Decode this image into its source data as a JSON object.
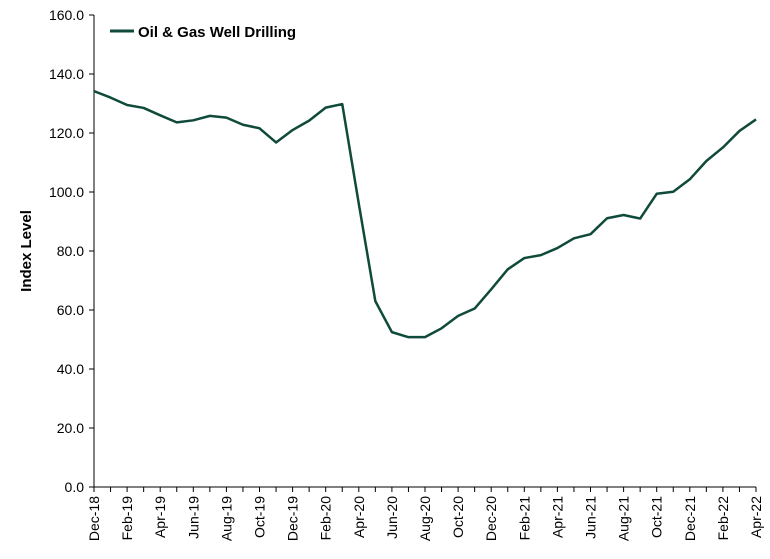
{
  "chart_data": {
    "type": "line",
    "title": "",
    "xlabel": "",
    "ylabel": "Index Level",
    "ylim": [
      0,
      160
    ],
    "y_ticks": [
      "0.0",
      "20.0",
      "40.0",
      "60.0",
      "80.0",
      "100.0",
      "120.0",
      "140.0",
      "160.0"
    ],
    "grid": false,
    "legend_position": "top-left",
    "x": [
      "Dec-18",
      "Jan-19",
      "Feb-19",
      "Mar-19",
      "Apr-19",
      "May-19",
      "Jun-19",
      "Jul-19",
      "Aug-19",
      "Sep-19",
      "Oct-19",
      "Nov-19",
      "Dec-19",
      "Jan-20",
      "Feb-20",
      "Mar-20",
      "Apr-20",
      "May-20",
      "Jun-20",
      "Jul-20",
      "Aug-20",
      "Sep-20",
      "Oct-20",
      "Nov-20",
      "Dec-20",
      "Jan-21",
      "Feb-21",
      "Mar-21",
      "Apr-21",
      "May-21",
      "Jun-21",
      "Jul-21",
      "Aug-21",
      "Sep-21",
      "Oct-21",
      "Nov-21",
      "Dec-21",
      "Jan-22",
      "Feb-22",
      "Mar-22",
      "Apr-22"
    ],
    "x_tick_labels": [
      "Dec-18",
      "Feb-19",
      "Apr-19",
      "Jun-19",
      "Aug-19",
      "Oct-19",
      "Dec-19",
      "Feb-20",
      "Apr-20",
      "Jun-20",
      "Aug-20",
      "Oct-20",
      "Dec-20",
      "Feb-21",
      "Apr-21",
      "Jun-21",
      "Aug-21",
      "Oct-21",
      "Dec-21",
      "Feb-22",
      "Apr-22"
    ],
    "series": [
      {
        "name": "Oil & Gas Well Drilling",
        "color": "#0f4a3a",
        "values": [
          134.2,
          132.0,
          129.5,
          128.5,
          126.0,
          123.6,
          124.3,
          125.8,
          125.2,
          122.8,
          121.6,
          116.8,
          121.0,
          124.2,
          128.6,
          129.8,
          96.0,
          63.0,
          52.5,
          50.8,
          50.8,
          53.8,
          58.0,
          60.5,
          67.0,
          73.8,
          77.6,
          78.6,
          81.0,
          84.3,
          85.7,
          91.1,
          92.2,
          91.0,
          99.4,
          100.1,
          104.3,
          110.5,
          115.1,
          120.7,
          124.6
        ]
      }
    ]
  }
}
